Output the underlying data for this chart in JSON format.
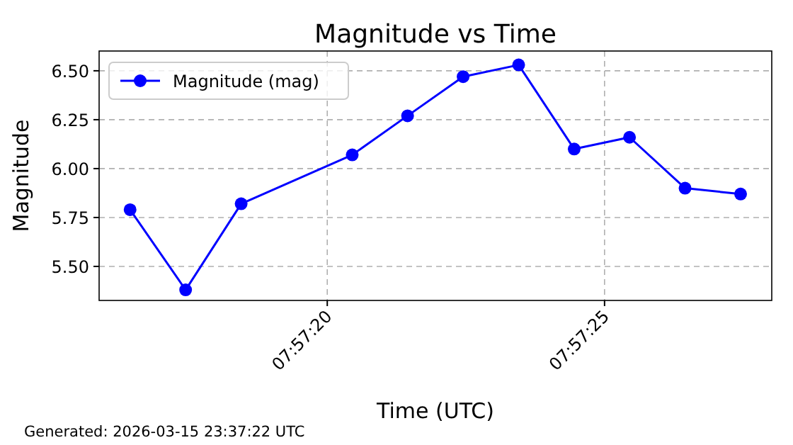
{
  "chart_data": {
    "type": "line",
    "title": "Magnitude vs Time",
    "xlabel": "Time (UTC)",
    "ylabel": "Magnitude",
    "x": [
      7.954569,
      7.954847,
      7.955125,
      7.955681,
      7.955958,
      7.956236,
      7.956514,
      7.956792,
      7.957069,
      7.957347,
      7.957625
    ],
    "series": [
      {
        "name": "Magnitude (mag)",
        "color": "#0000ff",
        "values": [
          5.79,
          5.38,
          5.82,
          6.07,
          6.27,
          6.47,
          6.53,
          6.1,
          6.16,
          5.9,
          5.87
        ]
      }
    ],
    "xlim": [
      7.954414,
      7.957781
    ],
    "xticks": [
      {
        "value": 7.955556,
        "label": "07:57:20"
      },
      {
        "value": 7.956944,
        "label": "07:57:25"
      }
    ],
    "ylim": [
      5.326,
      6.601
    ],
    "yticks": [
      {
        "value": 5.5,
        "label": "5.50"
      },
      {
        "value": 5.75,
        "label": "5.75"
      },
      {
        "value": 6.0,
        "label": "6.00"
      },
      {
        "value": 6.25,
        "label": "6.25"
      },
      {
        "value": 6.5,
        "label": "6.50"
      }
    ],
    "grid": true,
    "legend": "top left",
    "marker": "circle",
    "line_style": "solid",
    "annotations": [
      "Generated: 2026-03-15 23:37:22 UTC"
    ]
  }
}
